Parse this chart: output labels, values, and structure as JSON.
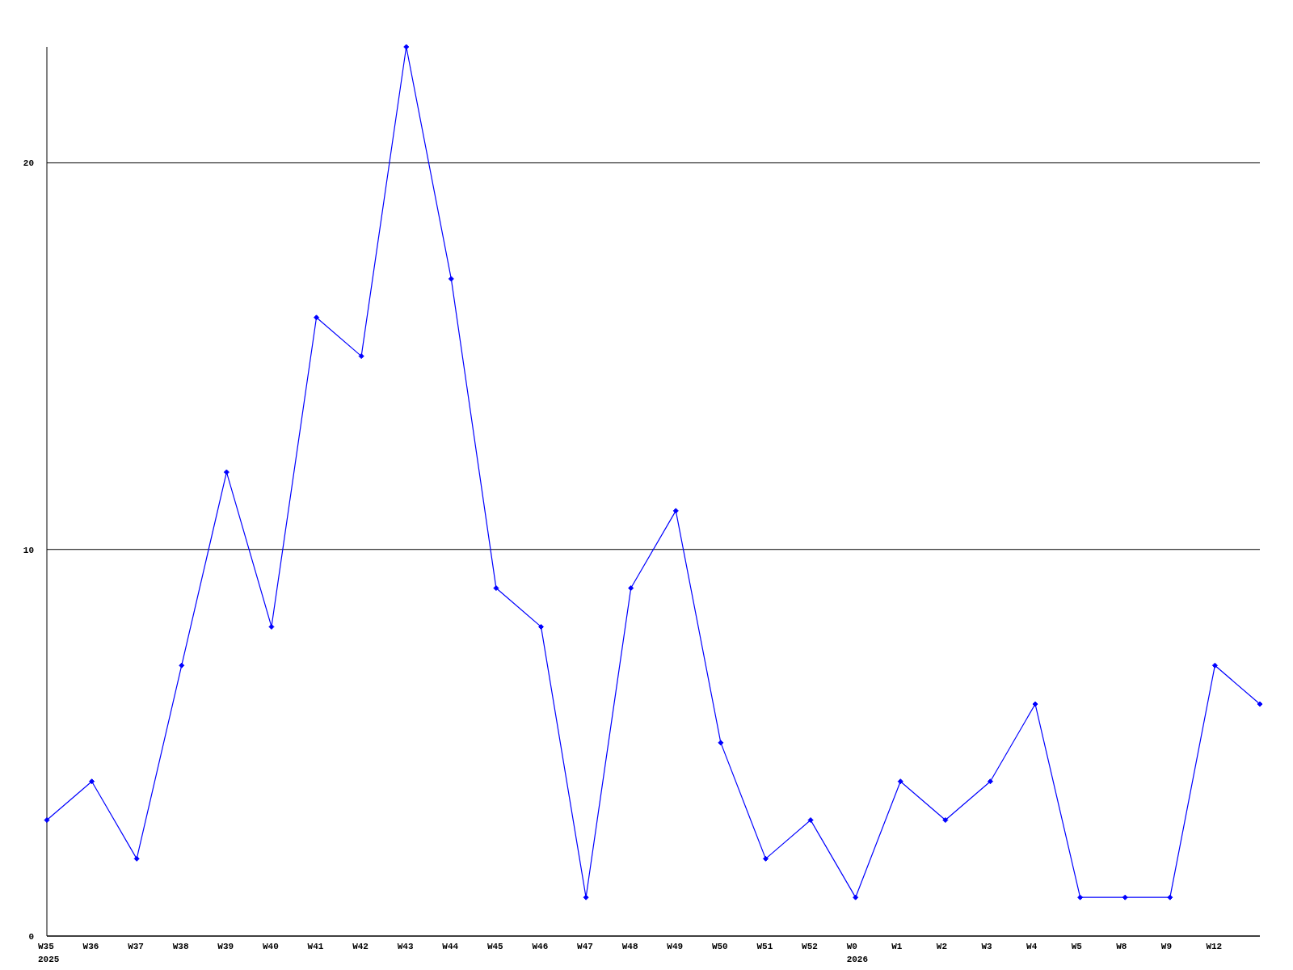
{
  "chart_data": {
    "type": "line",
    "categories": [
      "W35\n2025",
      "W36",
      "W37",
      "W38",
      "W39",
      "W40",
      "W41",
      "W42",
      "W43",
      "W44",
      "W45",
      "W46",
      "W47",
      "W48",
      "W49",
      "W50",
      "W51",
      "W52",
      "W0\n2026",
      "W1",
      "W2",
      "W3",
      "W4",
      "W5",
      "W8",
      "W9",
      "W12",
      null
    ],
    "series": [
      {
        "color": "#0000ff",
        "values": [
          3,
          4,
          2,
          7,
          12,
          8,
          16,
          15,
          23,
          17,
          9,
          8,
          1,
          9,
          11,
          5,
          2,
          3,
          1,
          4,
          3,
          4,
          6,
          1,
          1,
          1,
          7,
          6
        ]
      }
    ],
    "ylim": [
      0,
      23
    ],
    "yticks": [
      0,
      10,
      20
    ],
    "grid": "y",
    "marker": "diamond",
    "line_style": "solid"
  }
}
